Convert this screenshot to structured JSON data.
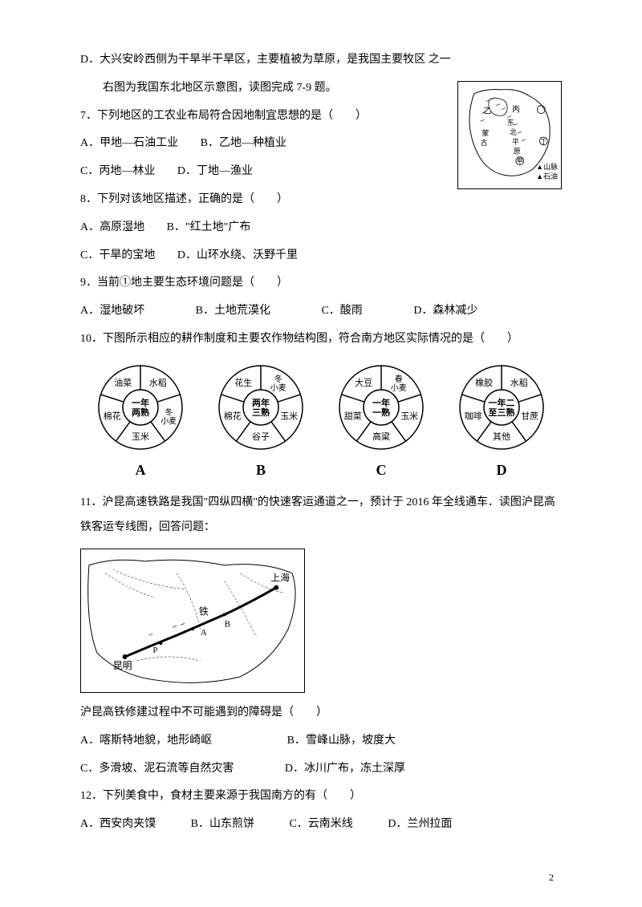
{
  "itemD": {
    "text": "D．大兴安岭西侧为干旱半干旱区，主要植被为草原，是我国主要牧区 之一"
  },
  "intro789": {
    "text": "右图为我国东北地区示意图，读图完成 7-9 题。"
  },
  "q7": {
    "stem": "7．下列地区的工农业布局符合因地制宜思想的是（　　）",
    "optA": "A．甲地—石油工业",
    "optB": "B．乙地—种植业",
    "optC": "C．丙地—林业",
    "optD": "D．丁地—渔业"
  },
  "q8": {
    "stem": "8．下列对该地区描述，正确的是（　　）",
    "optA": "A．高原湿地",
    "optB": "B．\"红土地\"广布",
    "optC": "C．干旱的宝地",
    "optD": "D．山环水绕、沃野千里"
  },
  "q9": {
    "stem": "9．当前①地主要生态环境问题是（　　）",
    "optA": "A．湿地破坏",
    "optB": "B．土地荒漠化",
    "optC": "C．酸雨",
    "optD": "D．森林减少"
  },
  "q10": {
    "stem": "10．下图所示相应的耕作制度和主要农作物结构图，符合南方地区实际情况的是（　　）"
  },
  "cropDiagrams": {
    "items": [
      {
        "id": "A",
        "center": "一年\n两熟",
        "sectors": [
          "水稻",
          "冬小麦",
          "玉米",
          "棉花",
          "油菜"
        ]
      },
      {
        "id": "B",
        "center": "两年\n三熟",
        "sectors": [
          "冬小麦",
          "玉米",
          "谷子",
          "棉花",
          "花生"
        ]
      },
      {
        "id": "C",
        "center": "一年\n一熟",
        "sectors": [
          "春小麦",
          "玉米",
          "高粱",
          "甜菜",
          "大豆"
        ]
      },
      {
        "id": "D",
        "center": "一年二\n至三熟",
        "sectors": [
          "水稻",
          "甘蔗",
          "其他",
          "咖啡",
          "橡胶"
        ]
      }
    ],
    "outerRadius": 52,
    "innerRadius": 22,
    "strokeColor": "#000000",
    "fillColor": "#ffffff",
    "fontSize": 11
  },
  "q11": {
    "stem": "11．沪昆高速铁路是我国\"四纵四横\"的快速客运通道之一，预计于 2016 年全线通车．读图沪昆高铁客运专线图，回答问题：",
    "sub": "沪昆高铁修建过程中不可能遇到的障碍是（　　）",
    "optA": "A．喀斯特地貌，地形崎岖",
    "optB": "B．雪峰山脉，坡度大",
    "optC": "C．多滑坡、泥石流等自然灾害",
    "optD": "D．冰川广布，冻土深厚"
  },
  "q12": {
    "stem": "12．下列美食中，食材主要来源于我国南方的有（　　）",
    "optA": "A．西安肉夹馍",
    "optB": "B．山东煎饼",
    "optC": "C．云南米线",
    "optD": "D．兰州拉面"
  },
  "map789": {
    "labels": {
      "yi": "乙",
      "bing": "丙",
      "jia": "甲",
      "ding": "丁",
      "mountain": "▲山脉",
      "oil": "▲石油",
      "plain1": "东",
      "plain2": "北",
      "plain3": "平",
      "plain4": "原",
      "mongol1": "蒙",
      "mongol2": "古"
    },
    "strokeColor": "#000000"
  },
  "railMap": {
    "labels": {
      "kunming": "昆明",
      "shanghai": "上海",
      "rail": "铁",
      "a": "A",
      "b": "B",
      "p": "P"
    },
    "strokeColor": "#000000"
  },
  "pageNum": "2"
}
